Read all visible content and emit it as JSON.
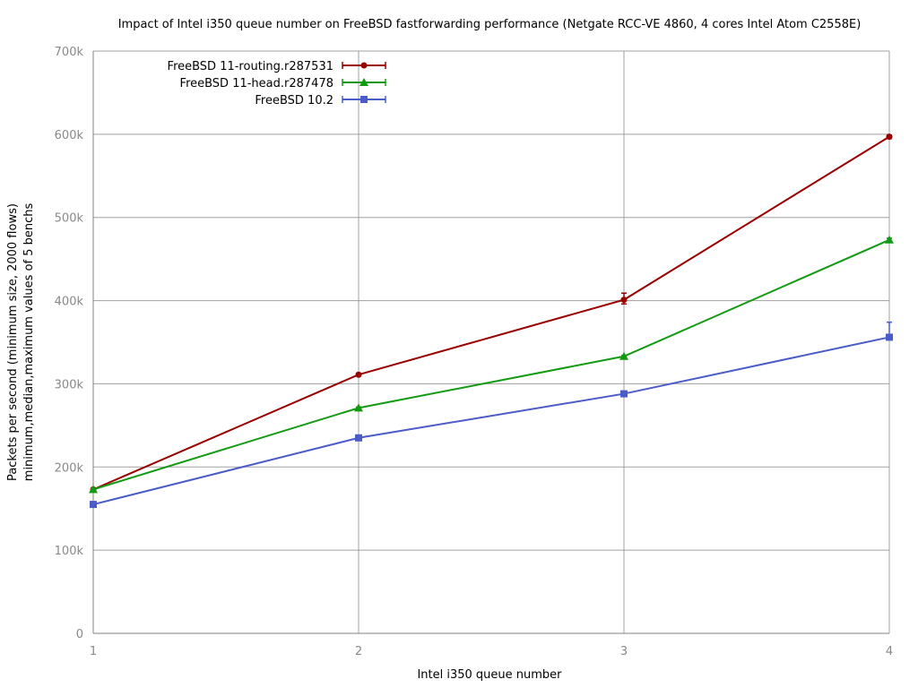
{
  "chart_data": {
    "type": "line",
    "title": "Impact of Intel i350 queue number on FreeBSD fastforwarding performance (Netgate RCC-VE 4860, 4 cores Intel Atom C2558E)",
    "xlabel": "Intel i350 queue number",
    "ylabel_line1": "Packets per second (minimum size, 2000 flows)",
    "ylabel_line2": "minimum,median,maximum values of 5 benchs",
    "x": [
      1,
      2,
      3,
      4
    ],
    "xlim": [
      1,
      4
    ],
    "ylim": [
      0,
      700000
    ],
    "yticks": [
      0,
      100000,
      200000,
      300000,
      400000,
      500000,
      600000,
      700000
    ],
    "ytick_labels": [
      "0",
      "100k",
      "200k",
      "300k",
      "400k",
      "500k",
      "600k",
      "700k"
    ],
    "xtick_labels": [
      "1",
      "2",
      "3",
      "4"
    ],
    "grid": true,
    "legend_position": "top-left",
    "series": [
      {
        "name": "FreeBSD 11-routing.r287531",
        "color": "#990000",
        "marker": "circle",
        "values": [
          173000,
          311000,
          401000,
          597000
        ],
        "min": [
          172000,
          310000,
          396000,
          595000
        ],
        "max": [
          174000,
          312000,
          409000,
          599000
        ]
      },
      {
        "name": "FreeBSD 11-head.r287478",
        "color": "#139a13",
        "marker": "triangle",
        "values": [
          173000,
          271000,
          333000,
          473000
        ],
        "min": [
          172000,
          270000,
          332000,
          471000
        ],
        "max": [
          174000,
          272000,
          334000,
          475000
        ]
      },
      {
        "name": "FreeBSD 10.2",
        "color": "#4a5cc8",
        "marker": "square",
        "values": [
          155000,
          235000,
          288000,
          356000
        ],
        "min": [
          154000,
          234000,
          287000,
          354000
        ],
        "max": [
          156000,
          236000,
          289000,
          374000
        ]
      }
    ]
  }
}
